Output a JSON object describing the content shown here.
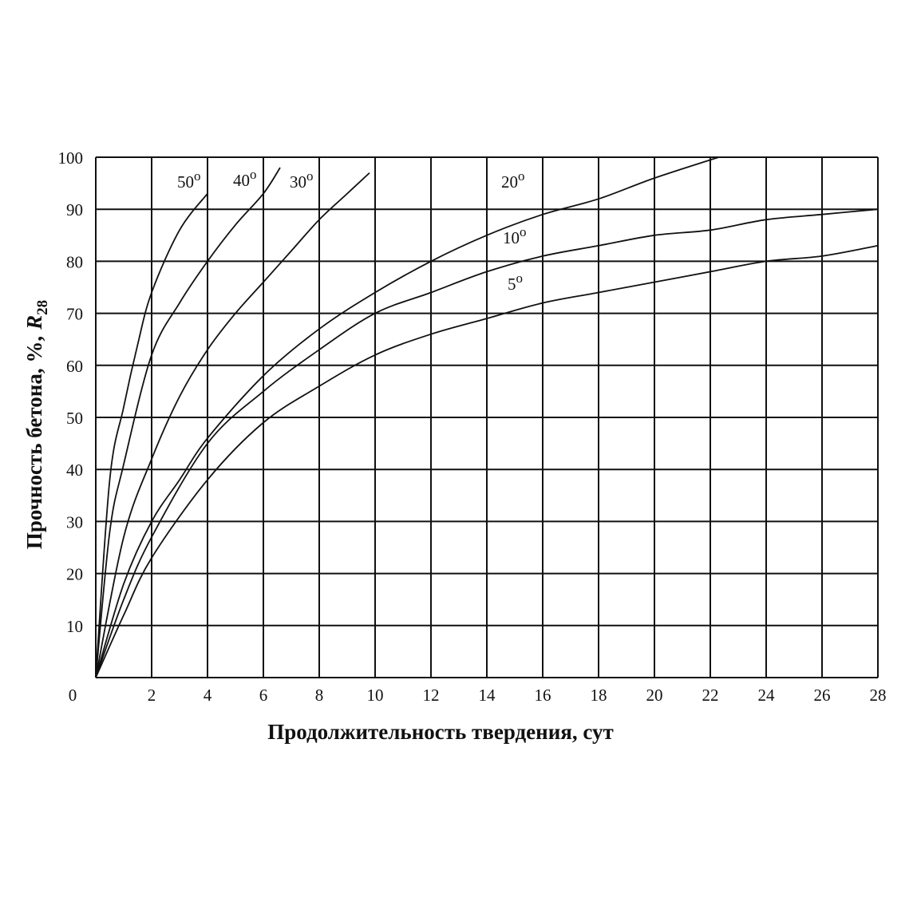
{
  "chart_data": {
    "type": "line",
    "xlabel": "Продолжительность твердения, сут",
    "ylabel_main": "Прочность бетона, %,",
    "ylabel_var": "R",
    "ylabel_sub": "28",
    "xlim": [
      0,
      28
    ],
    "ylim": [
      0,
      100
    ],
    "grid": true,
    "x_ticks": [
      "0",
      "2",
      "4",
      "6",
      "8",
      "10",
      "12",
      "14",
      "16",
      "18",
      "20",
      "22",
      "24",
      "26",
      "28"
    ],
    "y_ticks": [
      "10",
      "20",
      "30",
      "40",
      "50",
      "60",
      "70",
      "80",
      "90",
      "100"
    ],
    "series": [
      {
        "name": "50",
        "degree": "o",
        "x": [
          0,
          0.5,
          1,
          1.5,
          2,
          3,
          4
        ],
        "y": [
          0,
          38,
          52,
          64,
          74,
          86,
          93
        ]
      },
      {
        "name": "40",
        "degree": "o",
        "x": [
          0,
          0.5,
          1,
          2,
          3,
          4,
          5,
          6,
          6.6
        ],
        "y": [
          0,
          28,
          41,
          62,
          72,
          80,
          87,
          93,
          98
        ]
      },
      {
        "name": "30",
        "degree": "o",
        "x": [
          0,
          1,
          2,
          3,
          4,
          5,
          6,
          7,
          8,
          9,
          9.8
        ],
        "y": [
          0,
          27,
          42,
          54,
          63,
          70,
          76,
          82,
          88,
          93,
          97
        ]
      },
      {
        "name": "20",
        "degree": "o",
        "x": [
          0,
          1,
          2,
          3,
          4,
          6,
          8,
          10,
          12,
          14,
          16,
          18,
          20,
          22.3
        ],
        "y": [
          0,
          18,
          30,
          38,
          46,
          58,
          67,
          74,
          80,
          85,
          89,
          92,
          96,
          100
        ]
      },
      {
        "name": "10",
        "degree": "o",
        "x": [
          0,
          1,
          2,
          4,
          6,
          8,
          10,
          12,
          14,
          16,
          18,
          20,
          22,
          24,
          26,
          28
        ],
        "y": [
          0,
          15,
          27,
          45,
          55,
          63,
          70,
          74,
          78,
          81,
          83,
          85,
          86,
          88,
          89,
          90
        ]
      },
      {
        "name": "5",
        "degree": "o",
        "x": [
          0,
          1,
          2,
          4,
          6,
          8,
          10,
          12,
          14,
          16,
          18,
          20,
          22,
          24,
          26,
          28
        ],
        "y": [
          0,
          12,
          23,
          38,
          49,
          56,
          62,
          66,
          69,
          72,
          74,
          76,
          78,
          80,
          81,
          83
        ]
      }
    ]
  }
}
